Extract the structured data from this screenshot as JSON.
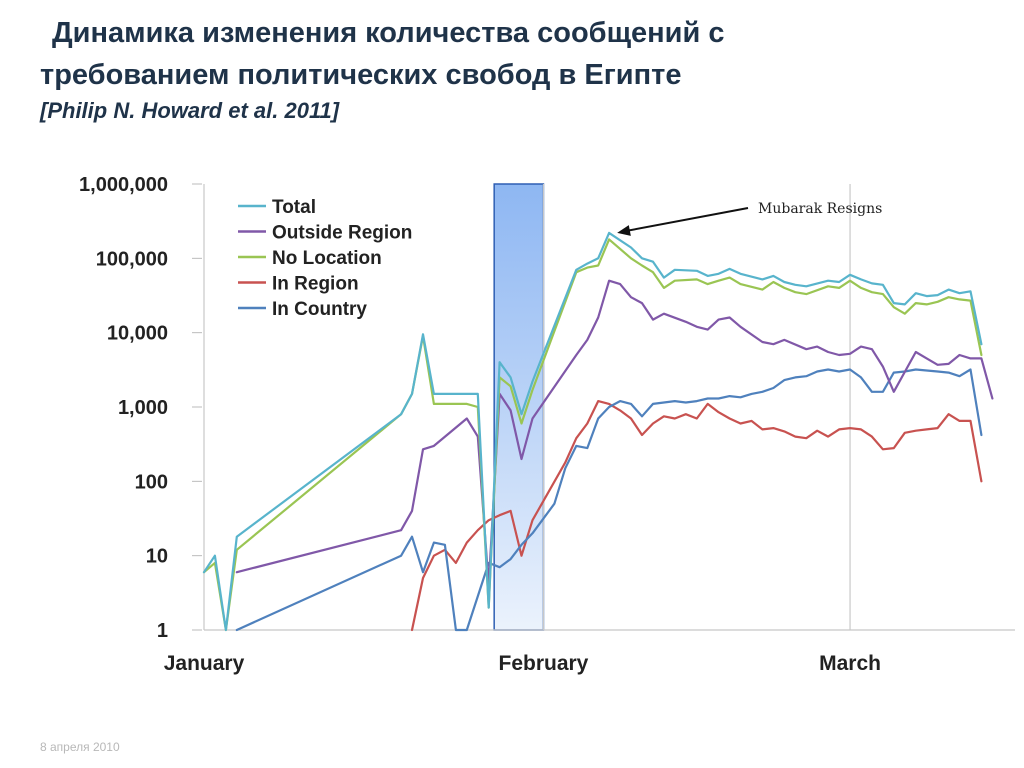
{
  "slide": {
    "title_line1": "Динамика изменения количества сообщений с",
    "title_line2": "требованием политических свобод в Египте",
    "citation": "[Philip N. Howard et al. 2011]",
    "footer_date": "8 апреля 2010"
  },
  "chart_data": {
    "type": "line",
    "title": "",
    "xlabel": "",
    "ylabel": "",
    "y_scale": "log",
    "ylim": [
      1,
      1000000
    ],
    "y_ticks": [
      1,
      10,
      100,
      1000,
      10000,
      100000,
      1000000
    ],
    "y_tick_labels": [
      "1",
      "10",
      "100",
      "1,000",
      "10,000",
      "100,000",
      "1,000,000"
    ],
    "x_unit": "day",
    "xlim": [
      1,
      70
    ],
    "x_month_labels": [
      {
        "label": "January",
        "day": 1
      },
      {
        "label": "February",
        "day": 32
      },
      {
        "label": "March",
        "day": 60
      }
    ],
    "gridlines": "vertical at month starts",
    "highlight_band": {
      "from_day": 27.5,
      "to_day": 32,
      "color": "#7aaaf0"
    },
    "annotation": {
      "text": "Mubarak Resigns",
      "day": 38,
      "value": 220000
    },
    "legend_position": "top-left",
    "series": [
      {
        "name": "Total",
        "color": "#58b4cc",
        "points": [
          [
            1,
            6
          ],
          [
            2,
            10
          ],
          [
            3,
            1
          ],
          [
            4,
            18
          ],
          [
            19,
            800
          ],
          [
            20,
            1500
          ],
          [
            21,
            9500
          ],
          [
            22,
            1500
          ],
          [
            25,
            1500
          ],
          [
            26,
            1500
          ],
          [
            27,
            2
          ],
          [
            28,
            4000
          ],
          [
            29,
            2500
          ],
          [
            30,
            800
          ],
          [
            31,
            2200
          ],
          [
            35,
            70000
          ],
          [
            36,
            85000
          ],
          [
            37,
            100000
          ],
          [
            38,
            220000
          ],
          [
            40,
            140000
          ],
          [
            41,
            100000
          ],
          [
            42,
            90000
          ],
          [
            43,
            55000
          ],
          [
            44,
            70000
          ],
          [
            46,
            68000
          ],
          [
            47,
            58000
          ],
          [
            48,
            62000
          ],
          [
            49,
            72000
          ],
          [
            50,
            62000
          ],
          [
            52,
            52000
          ],
          [
            53,
            58000
          ],
          [
            54,
            48000
          ],
          [
            55,
            44000
          ],
          [
            56,
            42000
          ],
          [
            58,
            50000
          ],
          [
            59,
            48000
          ],
          [
            60,
            60000
          ],
          [
            61,
            52000
          ],
          [
            62,
            46000
          ],
          [
            63,
            44000
          ],
          [
            64,
            25000
          ],
          [
            65,
            24000
          ],
          [
            66,
            34000
          ],
          [
            67,
            31000
          ],
          [
            68,
            32000
          ],
          [
            69,
            38000
          ],
          [
            70,
            34000
          ],
          [
            71,
            36000
          ],
          [
            72,
            7000
          ]
        ]
      },
      {
        "name": "Outside Region",
        "color": "#8058a8",
        "points": [
          [
            4,
            6
          ],
          [
            19,
            22
          ],
          [
            20,
            40
          ],
          [
            21,
            270
          ],
          [
            22,
            300
          ],
          [
            25,
            700
          ],
          [
            26,
            400
          ],
          [
            27,
            4
          ],
          [
            28,
            1500
          ],
          [
            29,
            900
          ],
          [
            30,
            200
          ],
          [
            31,
            700
          ],
          [
            35,
            5000
          ],
          [
            36,
            8000
          ],
          [
            37,
            16000
          ],
          [
            38,
            50000
          ],
          [
            39,
            45000
          ],
          [
            40,
            30000
          ],
          [
            41,
            25000
          ],
          [
            42,
            15000
          ],
          [
            43,
            18000
          ],
          [
            45,
            14000
          ],
          [
            46,
            12000
          ],
          [
            47,
            11000
          ],
          [
            48,
            15000
          ],
          [
            49,
            16000
          ],
          [
            50,
            12000
          ],
          [
            52,
            7500
          ],
          [
            53,
            7000
          ],
          [
            54,
            8000
          ],
          [
            56,
            6000
          ],
          [
            57,
            6500
          ],
          [
            58,
            5500
          ],
          [
            59,
            5000
          ],
          [
            60,
            5200
          ],
          [
            61,
            6500
          ],
          [
            62,
            6000
          ],
          [
            63,
            3500
          ],
          [
            64,
            1600
          ],
          [
            66,
            5500
          ],
          [
            67,
            4500
          ],
          [
            68,
            3700
          ],
          [
            69,
            3800
          ],
          [
            70,
            5000
          ],
          [
            71,
            4500
          ],
          [
            72,
            4500
          ],
          [
            73,
            1300
          ]
        ]
      },
      {
        "name": "No Location",
        "color": "#9ac553",
        "points": [
          [
            1,
            6
          ],
          [
            2,
            8
          ],
          [
            3,
            1
          ],
          [
            4,
            12
          ],
          [
            19,
            800
          ],
          [
            20,
            1500
          ],
          [
            21,
            9000
          ],
          [
            22,
            1100
          ],
          [
            25,
            1100
          ],
          [
            26,
            1000
          ],
          [
            27,
            2
          ],
          [
            28,
            2500
          ],
          [
            29,
            1900
          ],
          [
            30,
            600
          ],
          [
            31,
            1700
          ],
          [
            35,
            65000
          ],
          [
            36,
            75000
          ],
          [
            37,
            80000
          ],
          [
            38,
            180000
          ],
          [
            40,
            100000
          ],
          [
            41,
            80000
          ],
          [
            42,
            65000
          ],
          [
            43,
            40000
          ],
          [
            44,
            50000
          ],
          [
            46,
            52000
          ],
          [
            47,
            45000
          ],
          [
            48,
            50000
          ],
          [
            49,
            55000
          ],
          [
            50,
            45000
          ],
          [
            52,
            38000
          ],
          [
            53,
            48000
          ],
          [
            54,
            40000
          ],
          [
            55,
            35000
          ],
          [
            56,
            33000
          ],
          [
            58,
            42000
          ],
          [
            59,
            40000
          ],
          [
            60,
            50000
          ],
          [
            61,
            40000
          ],
          [
            62,
            35000
          ],
          [
            63,
            33000
          ],
          [
            64,
            22000
          ],
          [
            65,
            18000
          ],
          [
            66,
            25000
          ],
          [
            67,
            24000
          ],
          [
            68,
            26000
          ],
          [
            69,
            30000
          ],
          [
            70,
            28000
          ],
          [
            71,
            27000
          ],
          [
            72,
            5000
          ]
        ]
      },
      {
        "name": "In Region",
        "color": "#c85250",
        "points": [
          [
            20,
            1
          ],
          [
            21,
            5
          ],
          [
            22,
            10
          ],
          [
            23,
            12
          ],
          [
            24,
            8
          ],
          [
            25,
            15
          ],
          [
            26,
            22
          ],
          [
            27,
            30
          ],
          [
            28,
            35
          ],
          [
            29,
            40
          ],
          [
            30,
            10
          ],
          [
            31,
            30
          ],
          [
            34,
            180
          ],
          [
            35,
            380
          ],
          [
            36,
            600
          ],
          [
            37,
            1200
          ],
          [
            38,
            1100
          ],
          [
            39,
            900
          ],
          [
            40,
            700
          ],
          [
            41,
            420
          ],
          [
            42,
            600
          ],
          [
            43,
            750
          ],
          [
            44,
            700
          ],
          [
            45,
            800
          ],
          [
            46,
            700
          ],
          [
            47,
            1100
          ],
          [
            48,
            850
          ],
          [
            49,
            700
          ],
          [
            50,
            600
          ],
          [
            51,
            650
          ],
          [
            52,
            500
          ],
          [
            53,
            520
          ],
          [
            54,
            470
          ],
          [
            55,
            400
          ],
          [
            56,
            380
          ],
          [
            57,
            480
          ],
          [
            58,
            400
          ],
          [
            59,
            500
          ],
          [
            60,
            520
          ],
          [
            61,
            500
          ],
          [
            62,
            400
          ],
          [
            63,
            270
          ],
          [
            64,
            280
          ],
          [
            65,
            450
          ],
          [
            66,
            480
          ],
          [
            67,
            500
          ],
          [
            68,
            520
          ],
          [
            69,
            800
          ],
          [
            70,
            650
          ],
          [
            71,
            650
          ],
          [
            72,
            100
          ]
        ]
      },
      {
        "name": "In Country",
        "color": "#4f81bd",
        "points": [
          [
            4,
            1
          ],
          [
            19,
            10
          ],
          [
            20,
            18
          ],
          [
            21,
            6
          ],
          [
            22,
            15
          ],
          [
            23,
            14
          ],
          [
            24,
            1
          ],
          [
            25,
            1
          ],
          [
            27,
            8
          ],
          [
            28,
            7
          ],
          [
            29,
            9
          ],
          [
            30,
            14
          ],
          [
            31,
            20
          ],
          [
            33,
            50
          ],
          [
            34,
            150
          ],
          [
            35,
            300
          ],
          [
            36,
            280
          ],
          [
            37,
            700
          ],
          [
            38,
            1000
          ],
          [
            39,
            1200
          ],
          [
            40,
            1100
          ],
          [
            41,
            750
          ],
          [
            42,
            1100
          ],
          [
            43,
            1150
          ],
          [
            44,
            1200
          ],
          [
            45,
            1150
          ],
          [
            46,
            1200
          ],
          [
            47,
            1300
          ],
          [
            48,
            1300
          ],
          [
            49,
            1400
          ],
          [
            50,
            1350
          ],
          [
            51,
            1500
          ],
          [
            52,
            1600
          ],
          [
            53,
            1800
          ],
          [
            54,
            2300
          ],
          [
            55,
            2500
          ],
          [
            56,
            2600
          ],
          [
            57,
            3000
          ],
          [
            58,
            3200
          ],
          [
            59,
            3000
          ],
          [
            60,
            3200
          ],
          [
            61,
            2500
          ],
          [
            62,
            1600
          ],
          [
            63,
            1600
          ],
          [
            64,
            2900
          ],
          [
            65,
            3000
          ],
          [
            66,
            3200
          ],
          [
            67,
            3100
          ],
          [
            68,
            3000
          ],
          [
            69,
            2900
          ],
          [
            70,
            2600
          ],
          [
            71,
            3200
          ],
          [
            72,
            420
          ]
        ]
      }
    ]
  }
}
